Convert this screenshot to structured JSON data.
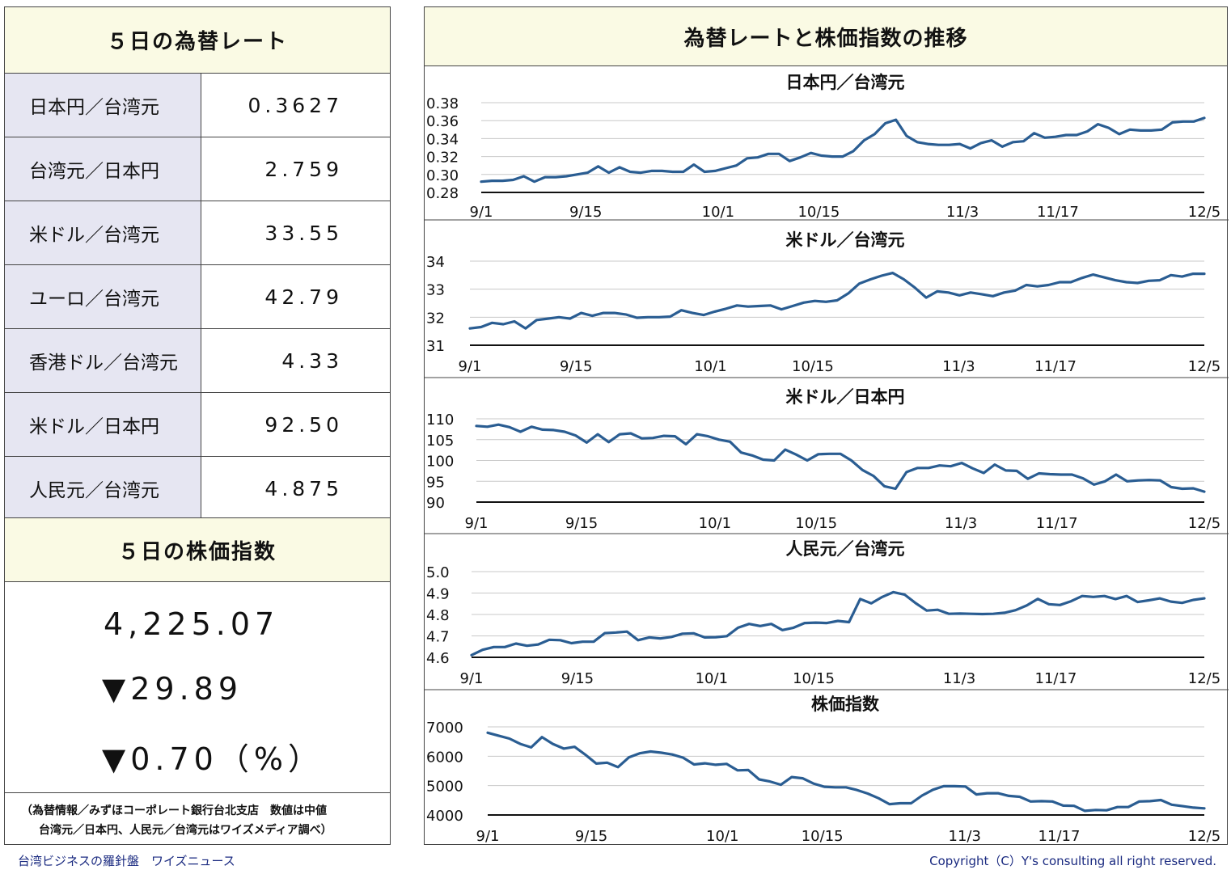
{
  "rates_title": "５日の為替レート",
  "rates": [
    {
      "name": "日本円／台湾元",
      "value": "0.3627"
    },
    {
      "name": "台湾元／日本円",
      "value": "2.759"
    },
    {
      "name": "米ドル／台湾元",
      "value": "33.55"
    },
    {
      "name": "ユーロ／台湾元",
      "value": "42.79"
    },
    {
      "name": "香港ドル／台湾元",
      "value": "4.33"
    },
    {
      "name": "米ドル／日本円",
      "value": "92.50"
    },
    {
      "name": "人民元／台湾元",
      "value": "4.875"
    }
  ],
  "stock_title": "５日の株価指数",
  "stock": {
    "value": "4,225.07",
    "change": "▼29.89",
    "change_pct": "▼0.70（%）"
  },
  "footnote": {
    "line1": "（為替情報／みずほコーポレート銀行台北支店　数値は中値",
    "line2": "台湾元／日本円、人民元／台湾元はワイズメディア調べ）"
  },
  "charts_title": "為替レートと株価指数の推移",
  "footer": {
    "left": "台湾ビジネスの羅針盤　ワイズニュース",
    "right": "Copyright（C）Y's consulting all right reserved."
  },
  "chart_data": [
    {
      "type": "line",
      "title": "日本円／台湾元",
      "x_ticks": [
        "9/1",
        "9/15",
        "10/1",
        "10/15",
        "11/3",
        "11/17",
        "12/5"
      ],
      "y_ticks": [
        "0.28",
        "0.30",
        "0.32",
        "0.34",
        "0.36",
        "0.38"
      ],
      "ylim": [
        0.28,
        0.38
      ],
      "grid": true,
      "values": [
        0.292,
        0.293,
        0.293,
        0.294,
        0.298,
        0.292,
        0.297,
        0.297,
        0.298,
        0.3,
        0.302,
        0.309,
        0.302,
        0.308,
        0.303,
        0.302,
        0.304,
        0.304,
        0.303,
        0.303,
        0.311,
        0.303,
        0.304,
        0.307,
        0.31,
        0.318,
        0.319,
        0.323,
        0.323,
        0.315,
        0.319,
        0.324,
        0.321,
        0.32,
        0.32,
        0.326,
        0.338,
        0.345,
        0.357,
        0.361,
        0.343,
        0.336,
        0.334,
        0.333,
        0.333,
        0.334,
        0.329,
        0.335,
        0.338,
        0.331,
        0.336,
        0.337,
        0.346,
        0.341,
        0.342,
        0.344,
        0.344,
        0.348,
        0.356,
        0.352,
        0.345,
        0.35,
        0.349,
        0.349,
        0.35,
        0.358,
        0.359,
        0.359,
        0.363
      ]
    },
    {
      "type": "line",
      "title": "米ドル／台湾元",
      "x_ticks": [
        "9/1",
        "9/15",
        "10/1",
        "10/15",
        "11/3",
        "11/17",
        "12/5"
      ],
      "y_ticks": [
        "31",
        "32",
        "33",
        "34"
      ],
      "ylim": [
        31,
        34
      ],
      "grid": true,
      "values": [
        31.6,
        31.65,
        31.8,
        31.75,
        31.85,
        31.6,
        31.9,
        31.95,
        32.0,
        31.95,
        32.15,
        32.05,
        32.15,
        32.15,
        32.1,
        31.98,
        32.0,
        32.0,
        32.02,
        32.25,
        32.15,
        32.08,
        32.2,
        32.3,
        32.42,
        32.38,
        32.4,
        32.42,
        32.28,
        32.4,
        32.52,
        32.58,
        32.55,
        32.6,
        32.85,
        33.2,
        33.35,
        33.48,
        33.58,
        33.35,
        33.05,
        32.7,
        32.92,
        32.88,
        32.78,
        32.88,
        32.82,
        32.75,
        32.88,
        32.95,
        33.15,
        33.1,
        33.15,
        33.25,
        33.25,
        33.4,
        33.52,
        33.42,
        33.32,
        33.25,
        33.22,
        33.3,
        33.32,
        33.5,
        33.45,
        33.55,
        33.55
      ]
    },
    {
      "type": "line",
      "title": "米ドル／日本円",
      "x_ticks": [
        "9/1",
        "9/15",
        "10/1",
        "10/15",
        "11/3",
        "11/17",
        "12/5"
      ],
      "y_ticks": [
        "90",
        "95",
        "100",
        "105",
        "110"
      ],
      "ylim": [
        90,
        110
      ],
      "grid": true,
      "values": [
        108.3,
        108.1,
        108.6,
        108.0,
        106.9,
        108.1,
        107.4,
        107.3,
        106.9,
        106.0,
        104.3,
        106.3,
        104.4,
        106.3,
        106.5,
        105.3,
        105.4,
        105.9,
        105.8,
        103.9,
        106.3,
        105.8,
        105.0,
        104.5,
        101.9,
        101.2,
        100.2,
        100.0,
        102.6,
        101.4,
        100.0,
        101.5,
        101.6,
        101.6,
        100.0,
        97.7,
        96.3,
        93.8,
        93.2,
        97.2,
        98.2,
        98.2,
        98.8,
        98.6,
        99.4,
        98.1,
        97.0,
        99.0,
        97.6,
        97.5,
        95.6,
        96.9,
        96.7,
        96.6,
        96.6,
        95.7,
        94.2,
        95.0,
        96.6,
        95.0,
        95.2,
        95.3,
        95.2,
        93.6,
        93.2,
        93.3,
        92.5
      ]
    },
    {
      "type": "line",
      "title": "人民元／台湾元",
      "x_ticks": [
        "9/1",
        "9/15",
        "10/1",
        "10/15",
        "11/3",
        "11/17",
        "12/5"
      ],
      "y_ticks": [
        "4.6",
        "4.7",
        "4.8",
        "4.9",
        "5.0"
      ],
      "ylim": [
        4.6,
        5.0
      ],
      "grid": true,
      "values": [
        4.61,
        4.635,
        4.648,
        4.648,
        4.664,
        4.654,
        4.66,
        4.682,
        4.68,
        4.666,
        4.673,
        4.673,
        4.713,
        4.716,
        4.72,
        4.68,
        4.693,
        4.688,
        4.695,
        4.71,
        4.712,
        4.693,
        4.694,
        4.699,
        4.738,
        4.756,
        4.746,
        4.756,
        4.727,
        4.738,
        4.76,
        4.762,
        4.76,
        4.77,
        4.764,
        4.872,
        4.852,
        4.882,
        4.904,
        4.893,
        4.853,
        4.818,
        4.822,
        4.803,
        4.804,
        4.803,
        4.802,
        4.803,
        4.808,
        4.82,
        4.842,
        4.873,
        4.848,
        4.844,
        4.862,
        4.886,
        4.882,
        4.886,
        4.872,
        4.886,
        4.858,
        4.866,
        4.875,
        4.86,
        4.854,
        4.868,
        4.875
      ]
    },
    {
      "type": "line",
      "title": "株価指数",
      "x_ticks": [
        "9/1",
        "9/15",
        "10/1",
        "10/15",
        "11/3",
        "11/17",
        "12/5"
      ],
      "y_ticks": [
        "4000",
        "5000",
        "6000",
        "7000"
      ],
      "ylim": [
        4000,
        7000
      ],
      "grid": true,
      "values": [
        6800,
        6700,
        6600,
        6420,
        6300,
        6650,
        6420,
        6260,
        6320,
        6050,
        5750,
        5780,
        5630,
        5960,
        6100,
        6160,
        6120,
        6060,
        5950,
        5720,
        5760,
        5710,
        5740,
        5520,
        5530,
        5210,
        5140,
        5030,
        5290,
        5250,
        5070,
        4960,
        4940,
        4940,
        4850,
        4730,
        4570,
        4370,
        4400,
        4400,
        4660,
        4860,
        4980,
        4980,
        4970,
        4700,
        4740,
        4740,
        4650,
        4620,
        4460,
        4470,
        4460,
        4320,
        4310,
        4140,
        4170,
        4160,
        4270,
        4270,
        4460,
        4470,
        4510,
        4350,
        4300,
        4250,
        4225
      ]
    }
  ]
}
